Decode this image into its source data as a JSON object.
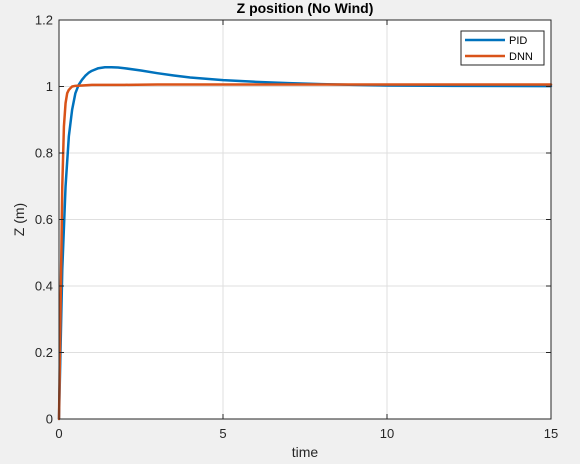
{
  "chart_data": {
    "type": "line",
    "title": "Z position (No Wind)",
    "xlabel": "time",
    "ylabel": "Z (m)",
    "xlim": [
      0,
      15
    ],
    "ylim": [
      0,
      1.2
    ],
    "xticks": [
      0,
      5,
      10,
      15
    ],
    "yticks": [
      0,
      0.2,
      0.4,
      0.6,
      0.8,
      1,
      1.2
    ],
    "xtick_labels": [
      "0",
      "5",
      "10",
      "15"
    ],
    "ytick_labels": [
      "0",
      "0.2",
      "0.4",
      "0.6",
      "0.8",
      "1",
      "1.2"
    ],
    "grid": true,
    "legend_position": "top-right",
    "series": [
      {
        "name": "PID",
        "color": "#0072BD",
        "x": [
          0,
          0.1,
          0.2,
          0.3,
          0.4,
          0.5,
          0.6,
          0.7,
          0.8,
          0.9,
          1.0,
          1.2,
          1.4,
          1.6,
          1.8,
          2.0,
          2.5,
          3.0,
          3.5,
          4.0,
          5.0,
          6.0,
          7.0,
          8.0,
          9.0,
          10.0,
          12.0,
          15.0
        ],
        "y": [
          0,
          0.45,
          0.7,
          0.85,
          0.93,
          0.98,
          1.005,
          1.02,
          1.032,
          1.041,
          1.047,
          1.055,
          1.058,
          1.058,
          1.057,
          1.055,
          1.048,
          1.04,
          1.033,
          1.027,
          1.019,
          1.014,
          1.01,
          1.007,
          1.005,
          1.003,
          1.002,
          1.001
        ]
      },
      {
        "name": "DNN",
        "color": "#D95319",
        "x": [
          0,
          0.05,
          0.1,
          0.15,
          0.2,
          0.25,
          0.3,
          0.35,
          0.4,
          0.5,
          0.7,
          1.0,
          2.0,
          3.0,
          5.0,
          8.0,
          10.0,
          15.0
        ],
        "y": [
          0,
          0.35,
          0.7,
          0.88,
          0.95,
          0.98,
          0.99,
          0.995,
          1.0,
          1.002,
          1.003,
          1.005,
          1.005,
          1.006,
          1.006,
          1.006,
          1.006,
          1.006
        ]
      }
    ]
  }
}
